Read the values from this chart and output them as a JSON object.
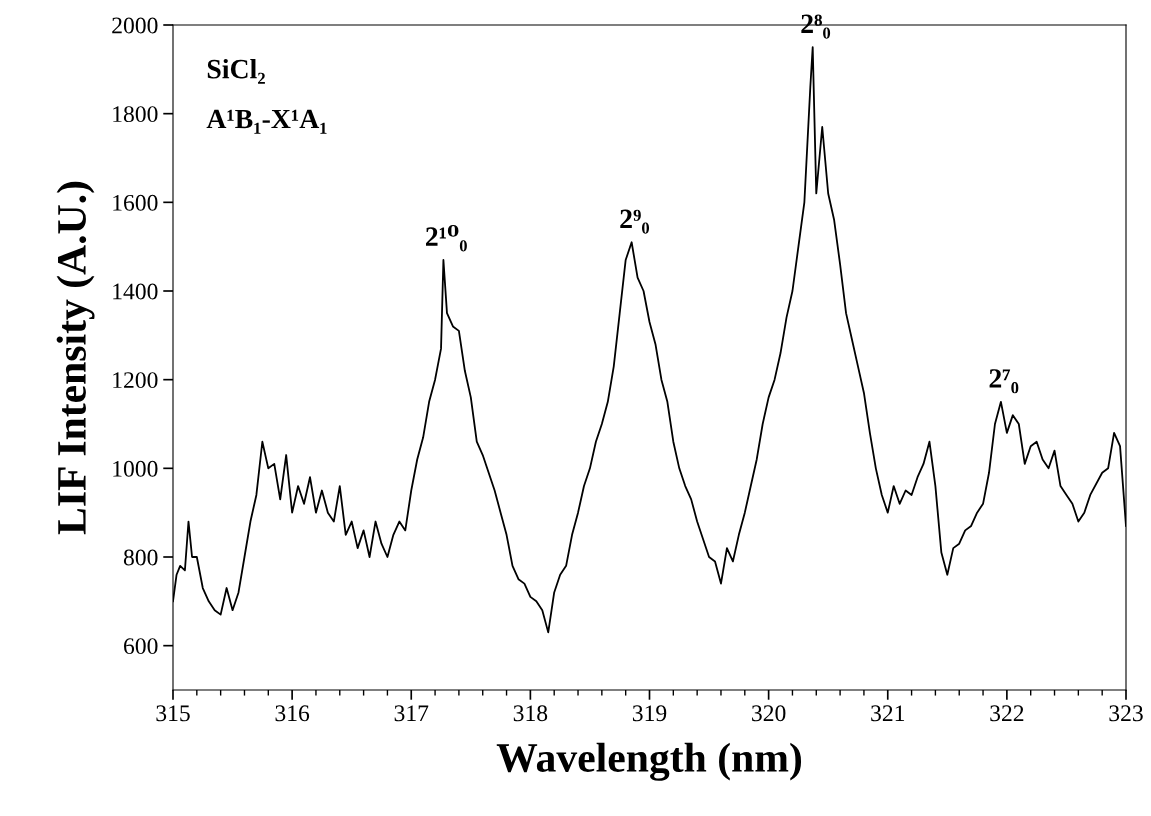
{
  "chart_data": {
    "type": "line",
    "xlabel": "Wavelength (nm)",
    "ylabel": "LIF Intensity (A.U.)",
    "xlim": [
      315,
      323
    ],
    "xticks": [
      315,
      316,
      317,
      318,
      319,
      320,
      321,
      322,
      323
    ],
    "ylim": [
      500,
      2000
    ],
    "yticks": [
      600,
      800,
      1000,
      1200,
      1400,
      1600,
      1800,
      2000
    ],
    "grid": false,
    "legend": false,
    "marker": "none",
    "line_style": "solid",
    "series": [
      {
        "color": "#000000",
        "x": [
          315.0,
          315.03,
          315.06,
          315.1,
          315.13,
          315.16,
          315.2,
          315.25,
          315.3,
          315.35,
          315.4,
          315.45,
          315.5,
          315.55,
          315.6,
          315.65,
          315.7,
          315.75,
          315.8,
          315.85,
          315.9,
          315.95,
          316.0,
          316.05,
          316.1,
          316.15,
          316.2,
          316.25,
          316.3,
          316.35,
          316.4,
          316.45,
          316.5,
          316.55,
          316.6,
          316.65,
          316.7,
          316.75,
          316.8,
          316.85,
          316.9,
          316.95,
          317.0,
          317.05,
          317.1,
          317.15,
          317.2,
          317.25,
          317.27,
          317.3,
          317.35,
          317.4,
          317.45,
          317.5,
          317.55,
          317.6,
          317.65,
          317.7,
          317.75,
          317.8,
          317.85,
          317.9,
          317.95,
          318.0,
          318.05,
          318.1,
          318.15,
          318.2,
          318.25,
          318.3,
          318.35,
          318.4,
          318.45,
          318.5,
          318.55,
          318.6,
          318.65,
          318.7,
          318.75,
          318.8,
          318.85,
          318.9,
          318.95,
          319.0,
          319.05,
          319.1,
          319.15,
          319.2,
          319.25,
          319.3,
          319.35,
          319.4,
          319.45,
          319.5,
          319.55,
          319.6,
          319.65,
          319.7,
          319.75,
          319.8,
          319.85,
          319.9,
          319.95,
          320.0,
          320.05,
          320.1,
          320.15,
          320.2,
          320.25,
          320.3,
          320.35,
          320.37,
          320.4,
          320.45,
          320.5,
          320.55,
          320.6,
          320.65,
          320.7,
          320.75,
          320.8,
          320.85,
          320.9,
          320.95,
          321.0,
          321.05,
          321.1,
          321.15,
          321.2,
          321.25,
          321.3,
          321.35,
          321.4,
          321.45,
          321.5,
          321.55,
          321.6,
          321.65,
          321.7,
          321.75,
          321.8,
          321.85,
          321.9,
          321.95,
          322.0,
          322.05,
          322.1,
          322.15,
          322.2,
          322.25,
          322.3,
          322.35,
          322.4,
          322.45,
          322.5,
          322.55,
          322.6,
          322.65,
          322.7,
          322.8,
          322.85,
          322.9,
          322.95,
          323.0
        ],
        "values": [
          700,
          760,
          780,
          770,
          880,
          800,
          800,
          730,
          700,
          680,
          670,
          730,
          680,
          720,
          800,
          880,
          940,
          1060,
          1000,
          1010,
          930,
          1030,
          900,
          960,
          920,
          980,
          900,
          950,
          900,
          880,
          960,
          850,
          880,
          820,
          860,
          800,
          880,
          830,
          800,
          850,
          880,
          860,
          950,
          1020,
          1070,
          1150,
          1200,
          1270,
          1470,
          1350,
          1320,
          1310,
          1220,
          1160,
          1060,
          1030,
          990,
          950,
          900,
          850,
          780,
          750,
          740,
          710,
          700,
          680,
          630,
          720,
          760,
          780,
          850,
          900,
          960,
          1000,
          1060,
          1100,
          1150,
          1230,
          1350,
          1470,
          1510,
          1430,
          1400,
          1330,
          1280,
          1200,
          1150,
          1060,
          1000,
          960,
          930,
          880,
          840,
          800,
          790,
          740,
          820,
          790,
          850,
          900,
          960,
          1020,
          1100,
          1160,
          1200,
          1260,
          1340,
          1400,
          1500,
          1600,
          1860,
          1950,
          1620,
          1770,
          1620,
          1560,
          1460,
          1350,
          1290,
          1230,
          1170,
          1080,
          1000,
          940,
          900,
          960,
          920,
          950,
          940,
          980,
          1010,
          1060,
          960,
          810,
          760,
          820,
          830,
          860,
          870,
          900,
          920,
          990,
          1100,
          1150,
          1080,
          1120,
          1100,
          1010,
          1050,
          1060,
          1020,
          1000,
          1040,
          960,
          940,
          920,
          880,
          900,
          940,
          990,
          1000,
          1080,
          1050,
          870
        ]
      }
    ],
    "annotations": [
      "SiCl₂",
      "A¹B₁-X¹A₁",
      {
        "text": "2¹⁰₀",
        "x": 317.27,
        "y": 1470
      },
      {
        "text": "2⁹₀",
        "x": 318.85,
        "y": 1510
      },
      {
        "text": "2⁸₀",
        "x": 320.37,
        "y": 1950
      },
      {
        "text": "2⁷₀",
        "x": 321.95,
        "y": 1150
      }
    ]
  }
}
